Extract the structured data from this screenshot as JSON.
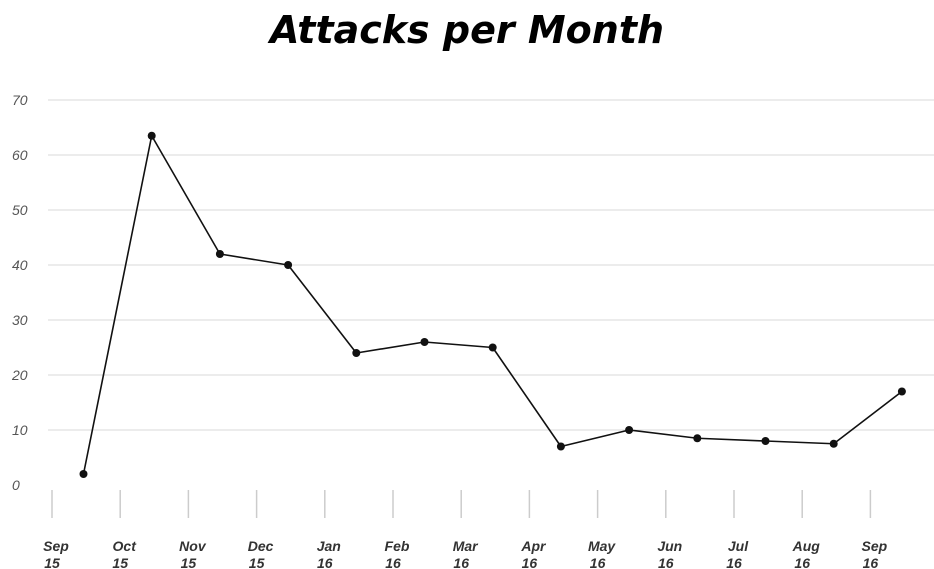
{
  "chart_data": {
    "type": "line",
    "title": "Attacks per Month",
    "xlabel": "",
    "ylabel": "",
    "ylim": [
      0,
      70
    ],
    "yticks": [
      0,
      10,
      20,
      30,
      40,
      50,
      60,
      70
    ],
    "grid": true,
    "x_tick_labels": [
      [
        "Sep",
        "15"
      ],
      [
        "Oct",
        "15"
      ],
      [
        "Nov",
        "15"
      ],
      [
        "Dec",
        "15"
      ],
      [
        "Jan",
        "16"
      ],
      [
        "Feb",
        "16"
      ],
      [
        "Mar",
        "16"
      ],
      [
        "Apr",
        "16"
      ],
      [
        "May",
        "16"
      ],
      [
        "Jun",
        "16"
      ],
      [
        "Jul",
        "16"
      ],
      [
        "Aug",
        "16"
      ],
      [
        "Sep",
        "16"
      ]
    ],
    "series": [
      {
        "color": "#111111",
        "points": [
          {
            "x": "2015-09-20",
            "y": 2
          },
          {
            "x": "2015-10-20",
            "y": 63.5
          },
          {
            "x": "2015-11-20",
            "y": 42
          },
          {
            "x": "2015-12-20",
            "y": 40
          },
          {
            "x": "2016-01-20",
            "y": 24
          },
          {
            "x": "2016-02-20",
            "y": 26
          },
          {
            "x": "2016-03-20",
            "y": 25
          },
          {
            "x": "2016-04-20",
            "y": 7
          },
          {
            "x": "2016-05-20",
            "y": 10
          },
          {
            "x": "2016-06-20",
            "y": 8.5
          },
          {
            "x": "2016-07-20",
            "y": 8
          },
          {
            "x": "2016-08-20",
            "y": 7.5
          },
          {
            "x": "2016-09-20",
            "y": 17
          }
        ]
      }
    ]
  }
}
